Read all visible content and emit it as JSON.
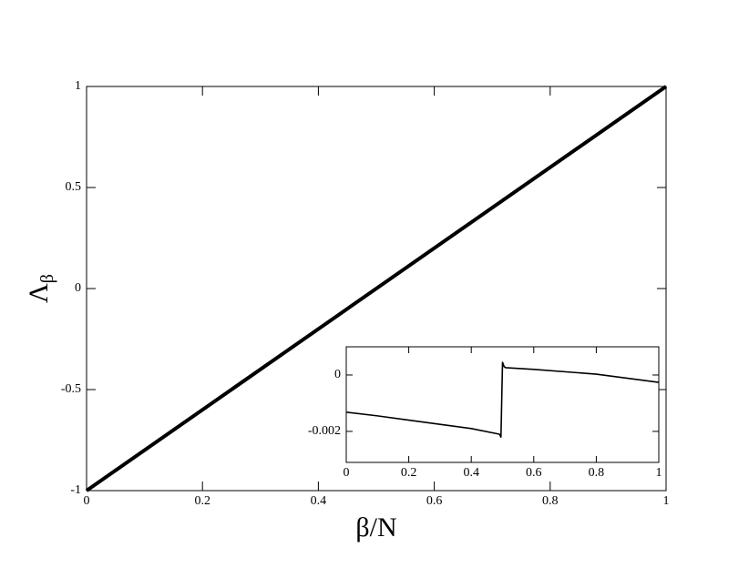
{
  "chart_data": [
    {
      "type": "line",
      "xlabel": "β/N",
      "ylabel": "Λβ",
      "xlim": [
        0,
        1
      ],
      "ylim": [
        -1,
        1
      ],
      "xticks": [
        0,
        0.2,
        0.4,
        0.6,
        0.8,
        1
      ],
      "yticks": [
        -1,
        -0.5,
        0,
        0.5,
        1
      ],
      "series": [
        {
          "color": "#000000",
          "x": [
            0,
            0.5,
            1
          ],
          "values": [
            -1,
            0,
            1
          ]
        }
      ]
    },
    {
      "type": "line",
      "xlim": [
        0,
        1
      ],
      "ylim": [
        -0.0031,
        0.001
      ],
      "xticks": [
        0,
        0.2,
        0.4,
        0.6,
        0.8,
        1
      ],
      "yticks": [
        -0.002,
        0
      ],
      "series": [
        {
          "color": "#000000",
          "x": [
            0,
            0.1,
            0.2,
            0.3,
            0.4,
            0.49,
            0.495,
            0.5,
            0.505,
            0.51,
            0.6,
            0.8,
            1
          ],
          "values": [
            -0.00132,
            -0.00145,
            -0.0016,
            -0.00175,
            -0.0019,
            -0.0021,
            -0.0022,
            0.00045,
            0.0003,
            0.00026,
            0.0002,
            3e-05,
            -0.00026
          ]
        }
      ]
    }
  ]
}
